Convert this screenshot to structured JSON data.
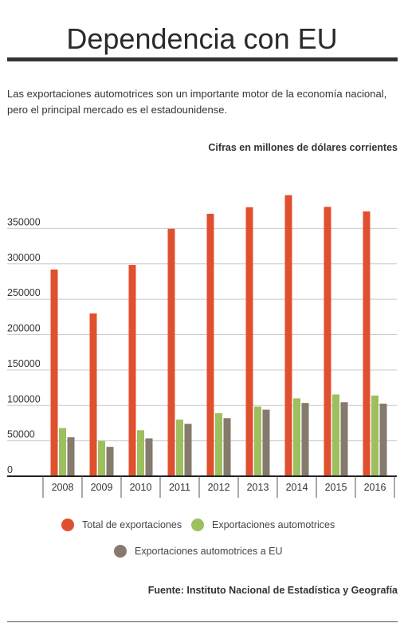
{
  "header": {
    "title": "Dependencia con EU",
    "subtitle": "Las exportaciones automotrices son un importante motor de la economía nacional, pero el principal mercado es el estadounidense.",
    "units_note": "Cifras en millones de dólares corrientes"
  },
  "footer": {
    "source": "Fuente: Instituto Nacional de Estadística y Geografía"
  },
  "legend": {
    "items": [
      {
        "label": "Total de exportaciones",
        "color": "#e0502f"
      },
      {
        "label": "Exportaciones automotrices",
        "color": "#9dbf5e"
      },
      {
        "label": "Exportaciones automotrices a EU",
        "color": "#857a6b"
      }
    ]
  },
  "chart_data": {
    "type": "bar",
    "categories": [
      "2008",
      "2009",
      "2010",
      "2011",
      "2012",
      "2013",
      "2014",
      "2015",
      "2016"
    ],
    "series": [
      {
        "name": "Total de exportaciones",
        "color": "#e0502f",
        "values": [
          292000,
          230000,
          298500,
          349500,
          370700,
          380000,
          397000,
          380500,
          374000
        ]
      },
      {
        "name": "Exportaciones automotrices",
        "color": "#9dbf5e",
        "values": [
          68000,
          50000,
          65000,
          80000,
          89000,
          98500,
          110000,
          115500,
          114000
        ]
      },
      {
        "name": "Exportaciones automotrices a EU",
        "color": "#857a6b",
        "values": [
          55000,
          41500,
          53500,
          74000,
          82000,
          94000,
          103500,
          104500,
          102500
        ]
      }
    ],
    "y_ticks": [
      "0",
      "50000",
      "100000",
      "150000",
      "200000",
      "250000",
      "300000",
      "350000"
    ],
    "ylim": [
      0,
      400000
    ],
    "grid": true,
    "legend_position": "bottom"
  }
}
